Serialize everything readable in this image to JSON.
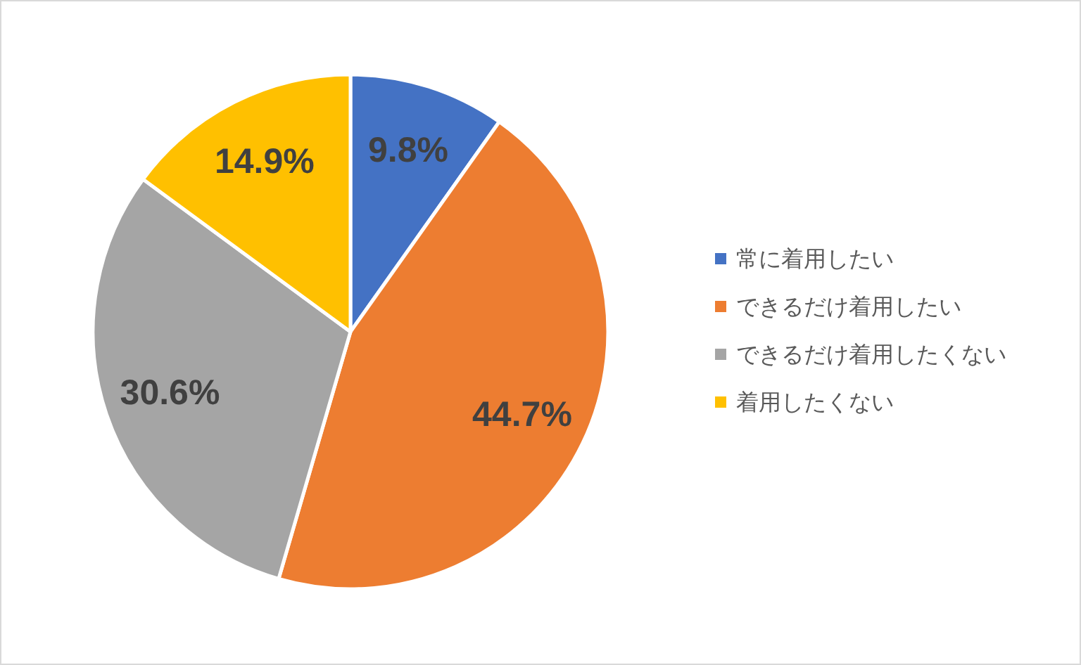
{
  "chart_data": {
    "type": "pie",
    "categories": [
      "常に着用したい",
      "できるだけ着用したい",
      "できるだけ着用したくない",
      "着用したくない"
    ],
    "values": [
      9.8,
      44.7,
      30.6,
      14.9
    ],
    "colors": [
      "#4472c4",
      "#ed7d31",
      "#a5a5a5",
      "#ffc000"
    ],
    "value_labels": [
      "9.8%",
      "44.7%",
      "30.6%",
      "14.9%"
    ],
    "legend": "right"
  }
}
